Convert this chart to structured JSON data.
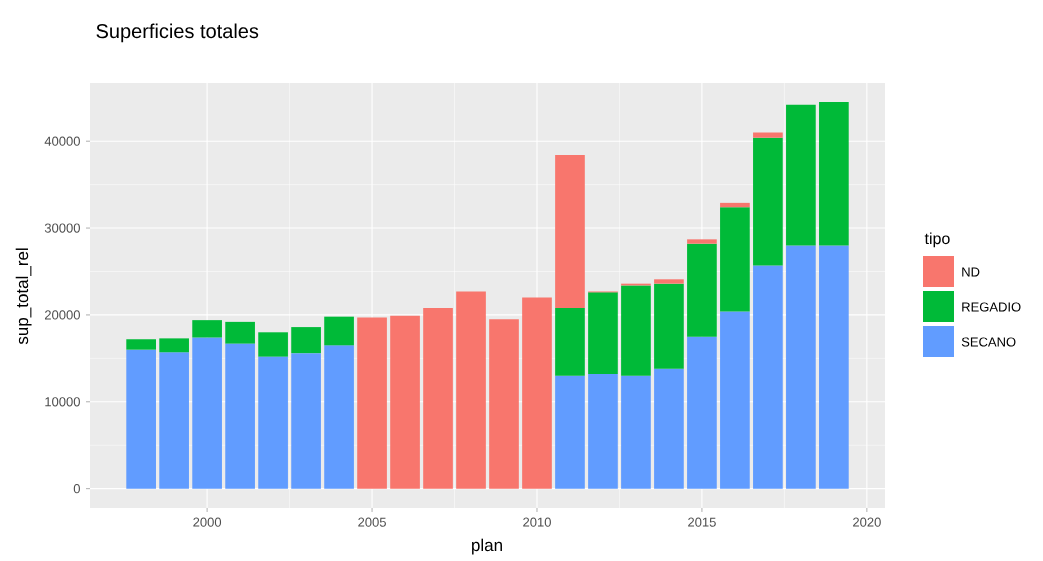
{
  "chart_data": {
    "type": "bar",
    "title": "Superficies totales",
    "xlabel": "plan",
    "ylabel": "sup_total_rel",
    "legend_title": "tipo",
    "stacked": true,
    "legend": "right",
    "grid": true,
    "x": [
      1998,
      1999,
      2000,
      2001,
      2002,
      2003,
      2004,
      2005,
      2006,
      2007,
      2008,
      2009,
      2010,
      2011,
      2012,
      2013,
      2014,
      2015,
      2016,
      2017,
      2018,
      2019
    ],
    "xlim": [
      1996.45,
      2020.55
    ],
    "xticks": [
      2000,
      2005,
      2010,
      2015,
      2020
    ],
    "ylim": [
      -2225,
      46700
    ],
    "yticks": [
      0,
      10000,
      20000,
      30000,
      40000
    ],
    "series": [
      {
        "name": "SECANO",
        "color": "#619cff",
        "values": [
          16000,
          15700,
          17400,
          16700,
          15200,
          15600,
          16500,
          null,
          null,
          null,
          null,
          null,
          null,
          13000,
          13200,
          13000,
          13800,
          17500,
          20400,
          25700,
          28000,
          28000
        ]
      },
      {
        "name": "REGADIO",
        "color": "#00ba38",
        "values": [
          1200,
          1600,
          2000,
          2500,
          2800,
          3000,
          3300,
          null,
          null,
          null,
          null,
          null,
          null,
          7800,
          9400,
          10400,
          9800,
          10700,
          12000,
          14700,
          16200,
          16500
        ]
      },
      {
        "name": "ND",
        "color": "#f8766d",
        "values": [
          null,
          null,
          null,
          null,
          null,
          null,
          null,
          19700,
          19900,
          20800,
          22700,
          19500,
          22000,
          17600,
          100,
          200,
          500,
          500,
          500,
          600,
          null,
          null
        ]
      }
    ]
  }
}
